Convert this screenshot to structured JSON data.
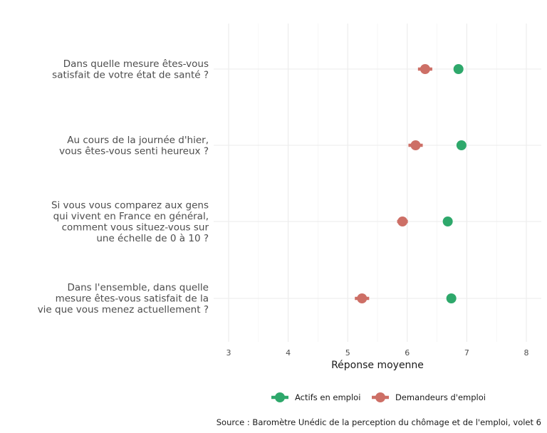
{
  "chart_data": {
    "type": "dot",
    "xlabel": "Réponse moyenne",
    "xlim": [
      3,
      8
    ],
    "xticks": [
      3,
      4,
      5,
      6,
      7,
      8
    ],
    "grid": true,
    "legend_position": "bottom",
    "categories": [
      [
        "Dans quelle mesure êtes-vous",
        "satisfait de votre état de santé ?"
      ],
      [
        "Au cours de la journée d'hier,",
        "vous êtes-vous senti heureux ?"
      ],
      [
        "Si vous vous comparez aux gens",
        "qui vivent en France en général,",
        "comment vous situez-vous sur",
        "une échelle de 0 à 10 ?"
      ],
      [
        "Dans l'ensemble, dans quelle",
        "mesure êtes-vous satisfait de la",
        "vie que vous menez actuellement ?"
      ]
    ],
    "series": [
      {
        "name": "Actifs en emploi",
        "color": "#2ea86b",
        "values": [
          6.86,
          6.91,
          6.68,
          6.74
        ],
        "errors": [
          0.05,
          0.05,
          0.04,
          0.04
        ]
      },
      {
        "name": "Demandeurs d'emploi",
        "color": "#cd6f66",
        "values": [
          6.3,
          6.14,
          5.92,
          5.24
        ],
        "errors": [
          0.12,
          0.12,
          0.09,
          0.12
        ]
      }
    ],
    "caption": "Source : Baromètre Unédic de la perception du chômage et de l'emploi, volet 6"
  }
}
